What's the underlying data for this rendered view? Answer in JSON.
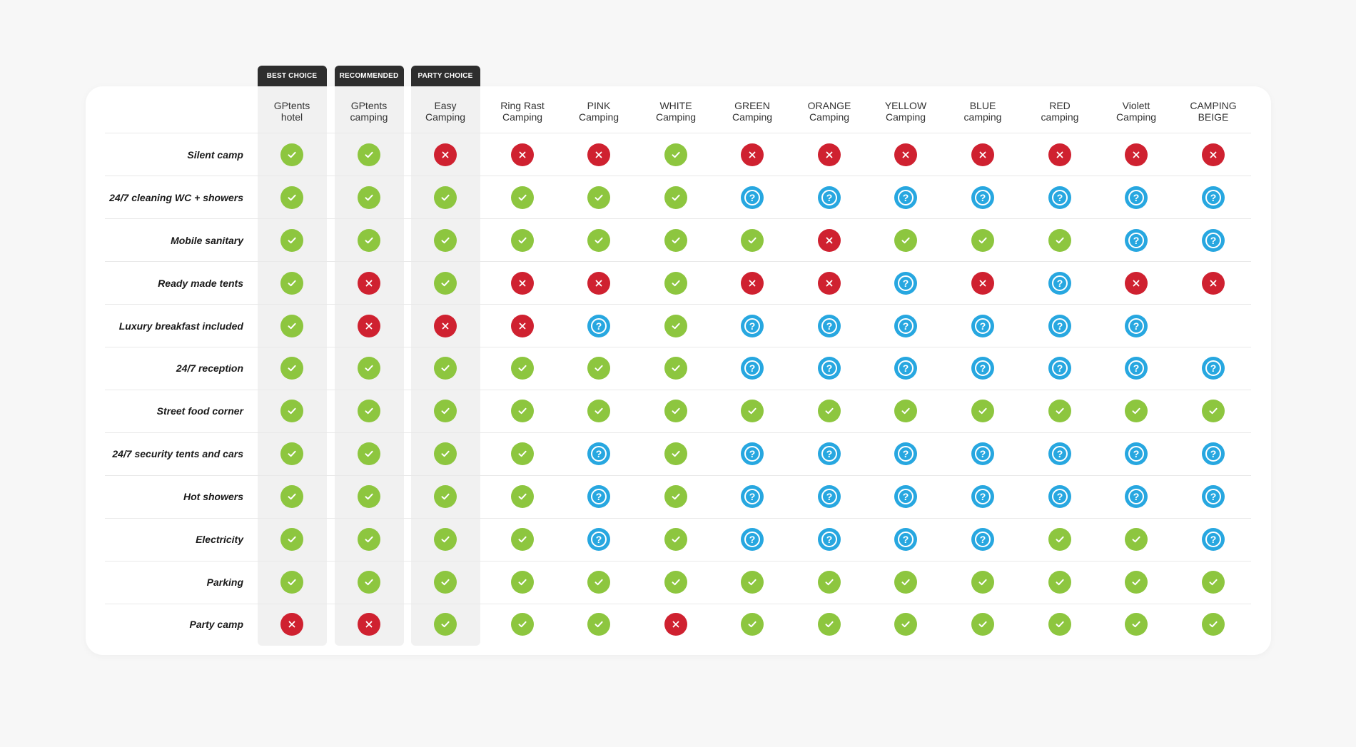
{
  "badges": [
    "BEST CHOICE",
    "RECOMMENDED",
    "PARTY CHOICE"
  ],
  "columns": [
    {
      "line1": "GPtents",
      "line2": "hotel"
    },
    {
      "line1": "GPtents",
      "line2": "camping"
    },
    {
      "line1": "Easy",
      "line2": "Camping"
    },
    {
      "line1": "Ring Rast",
      "line2": "Camping"
    },
    {
      "line1": "PINK",
      "line2": "Camping"
    },
    {
      "line1": "WHITE",
      "line2": "Camping"
    },
    {
      "line1": "GREEN",
      "line2": "Camping"
    },
    {
      "line1": "ORANGE",
      "line2": "Camping"
    },
    {
      "line1": "YELLOW",
      "line2": "Camping"
    },
    {
      "line1": "BLUE",
      "line2": "camping"
    },
    {
      "line1": "RED",
      "line2": "camping"
    },
    {
      "line1": "Violett",
      "line2": "Camping"
    },
    {
      "line1": "CAMPING",
      "line2": "BEIGE"
    }
  ],
  "rows": [
    {
      "label": "Silent camp",
      "values": [
        "yes",
        "yes",
        "no",
        "no",
        "no",
        "yes",
        "no",
        "no",
        "no",
        "no",
        "no",
        "no",
        "no"
      ]
    },
    {
      "label": "24/7 cleaning WC + showers",
      "values": [
        "yes",
        "yes",
        "yes",
        "yes",
        "yes",
        "yes",
        "maybe",
        "maybe",
        "maybe",
        "maybe",
        "maybe",
        "maybe",
        "maybe"
      ]
    },
    {
      "label": "Mobile sanitary",
      "values": [
        "yes",
        "yes",
        "yes",
        "yes",
        "yes",
        "yes",
        "yes",
        "no",
        "yes",
        "yes",
        "yes",
        "maybe",
        "maybe"
      ]
    },
    {
      "label": "Ready made tents",
      "values": [
        "yes",
        "no",
        "yes",
        "no",
        "no",
        "yes",
        "no",
        "no",
        "maybe",
        "no",
        "maybe",
        "no",
        "no"
      ]
    },
    {
      "label": "Luxury breakfast included",
      "values": [
        "yes",
        "no",
        "no",
        "no",
        "maybe",
        "yes",
        "maybe",
        "maybe",
        "maybe",
        "maybe",
        "maybe",
        "maybe",
        ""
      ]
    },
    {
      "label": "24/7 reception",
      "values": [
        "yes",
        "yes",
        "yes",
        "yes",
        "yes",
        "yes",
        "maybe",
        "maybe",
        "maybe",
        "maybe",
        "maybe",
        "maybe",
        "maybe"
      ]
    },
    {
      "label": "Street food corner",
      "values": [
        "yes",
        "yes",
        "yes",
        "yes",
        "yes",
        "yes",
        "yes",
        "yes",
        "yes",
        "yes",
        "yes",
        "yes",
        "yes"
      ]
    },
    {
      "label": "24/7 security tents and cars",
      "values": [
        "yes",
        "yes",
        "yes",
        "yes",
        "maybe",
        "yes",
        "maybe",
        "maybe",
        "maybe",
        "maybe",
        "maybe",
        "maybe",
        "maybe"
      ]
    },
    {
      "label": "Hot showers",
      "values": [
        "yes",
        "yes",
        "yes",
        "yes",
        "maybe",
        "yes",
        "maybe",
        "maybe",
        "maybe",
        "maybe",
        "maybe",
        "maybe",
        "maybe"
      ]
    },
    {
      "label": "Electricity",
      "values": [
        "yes",
        "yes",
        "yes",
        "yes",
        "maybe",
        "yes",
        "maybe",
        "maybe",
        "maybe",
        "maybe",
        "yes",
        "yes",
        "maybe"
      ]
    },
    {
      "label": "Parking",
      "values": [
        "yes",
        "yes",
        "yes",
        "yes",
        "yes",
        "yes",
        "yes",
        "yes",
        "yes",
        "yes",
        "yes",
        "yes",
        "yes"
      ]
    },
    {
      "label": "Party camp",
      "values": [
        "no",
        "no",
        "yes",
        "yes",
        "yes",
        "no",
        "yes",
        "yes",
        "yes",
        "yes",
        "yes",
        "yes",
        "yes"
      ]
    }
  ],
  "colors": {
    "yes": "#8dc63f",
    "no": "#cf2130",
    "maybe": "#27a7e0",
    "badge": "#2e2e2e",
    "highlight": "#f1f1f1"
  },
  "icons": {
    "yes": "check-icon",
    "no": "cross-icon",
    "maybe": "question-icon"
  }
}
